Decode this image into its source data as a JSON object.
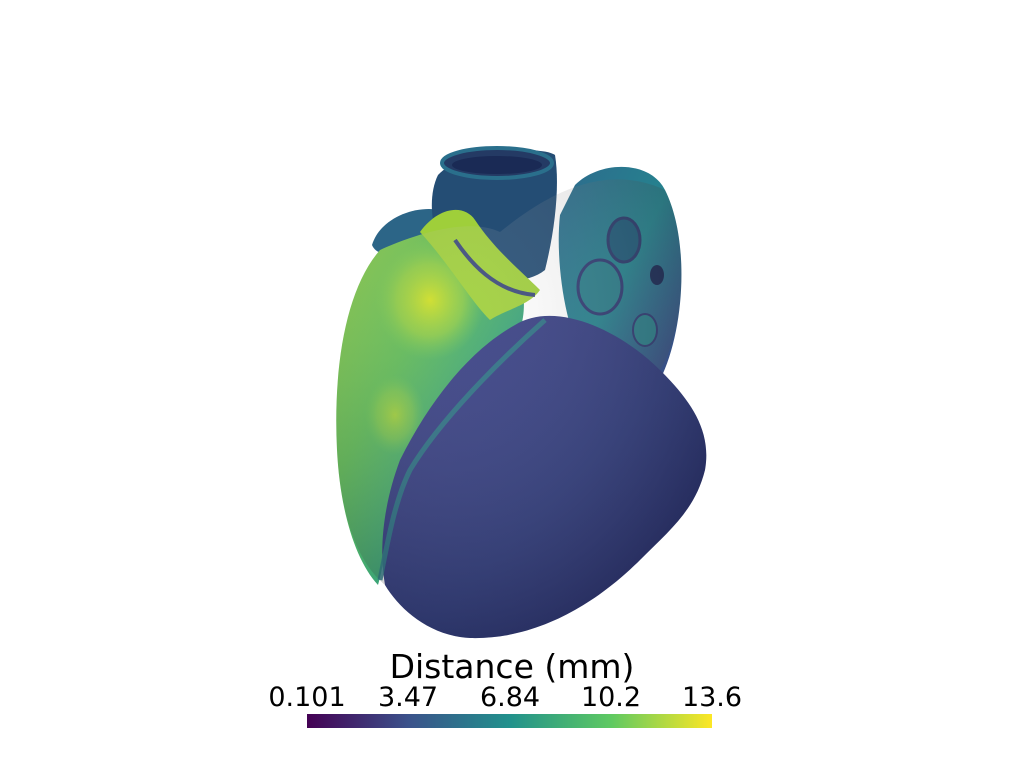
{
  "scene": {
    "object": "heart surface mesh",
    "colormap": "viridis"
  },
  "scalar_bar": {
    "title": "Distance (mm)",
    "ticks": [
      "0.101",
      "3.47",
      "6.84",
      "10.2",
      "13.6"
    ],
    "range": [
      0.101,
      13.6
    ]
  },
  "colors": {
    "background": "#ffffff",
    "viridis": [
      "#440154",
      "#3b528b",
      "#21918c",
      "#5ec962",
      "#fde725"
    ]
  }
}
